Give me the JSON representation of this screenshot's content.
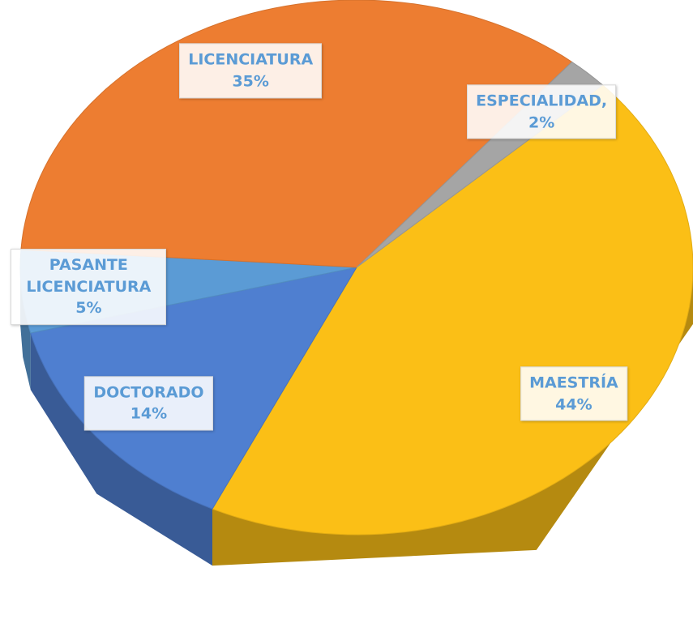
{
  "chart_data": {
    "type": "pie",
    "categories": [
      "MAESTRÍA",
      "DOCTORADO",
      "PASANTE LICENCIATURA",
      "LICENCIATURA",
      "ESPECIALIDAD,"
    ],
    "values": [
      44,
      14,
      5,
      35,
      2
    ],
    "value_labels": [
      "44%",
      "14%",
      "5%",
      "35%",
      "2%"
    ],
    "colors": [
      "#fbbf16",
      "#4f7fd0",
      "#5b9bd5",
      "#ed7d31",
      "#a5a5a5"
    ]
  }
}
